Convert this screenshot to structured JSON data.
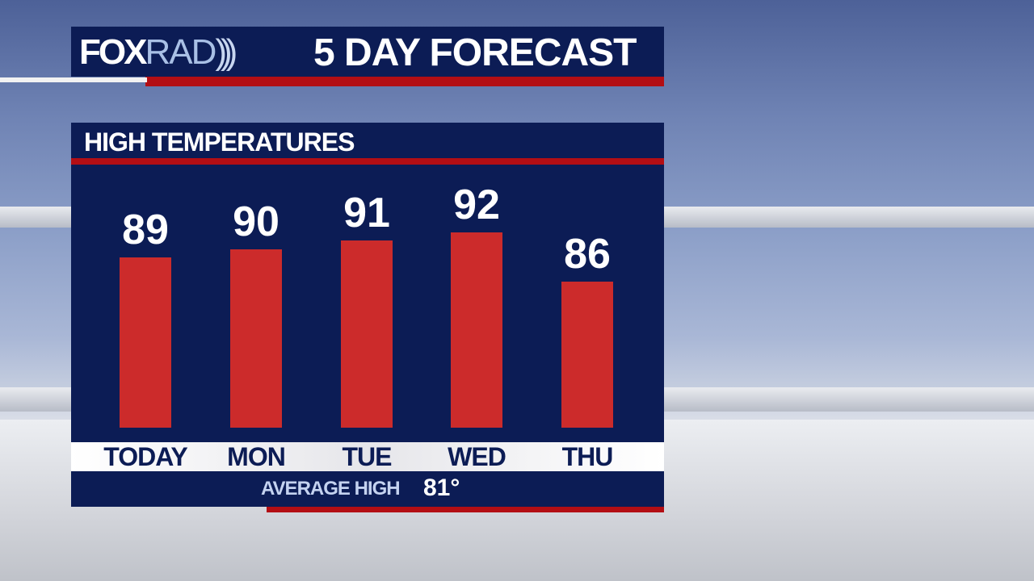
{
  "header": {
    "logo": "FOXRAD",
    "logo_fox": "FOX",
    "logo_rad": "RAD",
    "title": "5 DAY FORECAST"
  },
  "colors": {
    "navy": "#0c1c55",
    "red_stripe": "#b30e14",
    "bar": "#cc2b2b"
  },
  "chart_data": {
    "type": "bar",
    "title": "HIGH TEMPERATURES",
    "categories": [
      "TODAY",
      "MON",
      "TUE",
      "WED",
      "THU"
    ],
    "values": [
      89,
      90,
      91,
      92,
      86
    ],
    "value_labels": [
      "89",
      "90",
      "91",
      "92",
      "86"
    ],
    "grid": false
  },
  "footer": {
    "average_label": "AVERAGE HIGH",
    "average_value": "81°"
  }
}
